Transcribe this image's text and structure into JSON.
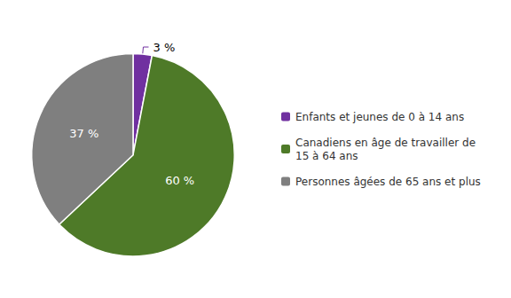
{
  "chart_data": {
    "type": "pie",
    "categories": [
      "Enfants et jeunes de 0 à 14 ans",
      "Canadiens en âge de travailler de\n15 à 64 ans",
      "Personnes âgées de 65 ans et plus"
    ],
    "values": [
      3,
      60,
      37
    ],
    "value_labels": [
      "3 %",
      "60 %",
      "37 %"
    ],
    "colors": [
      "#7030a0",
      "#4e7a28",
      "#7f7f7f"
    ],
    "data_labels": true,
    "legend": "right"
  }
}
